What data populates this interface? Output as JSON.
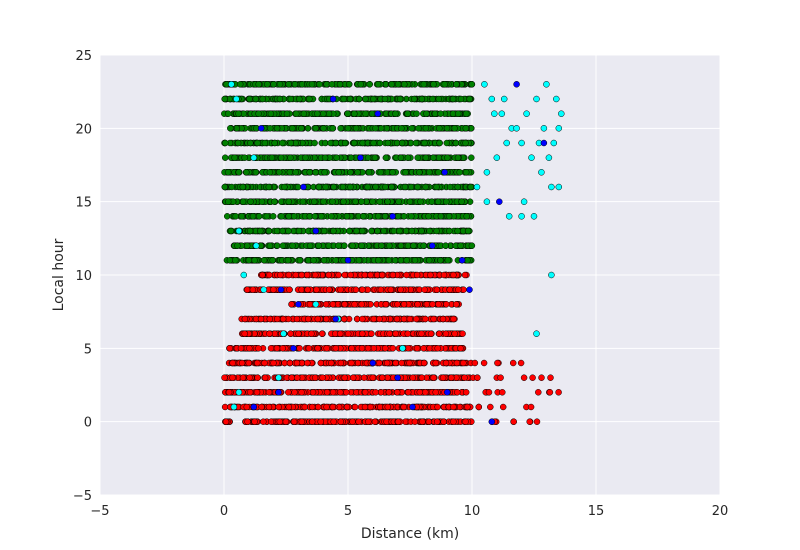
{
  "chart_data": {
    "type": "scatter",
    "title": "",
    "xlabel": "Distance (km)",
    "ylabel": "Local hour",
    "xlim": [
      -5,
      20
    ],
    "ylim": [
      -5,
      25
    ],
    "xticks": [
      "−5",
      "0",
      "5",
      "10",
      "15",
      "20"
    ],
    "yticks": [
      "−5",
      "0",
      "5",
      "10",
      "15",
      "20",
      "25"
    ],
    "grid": true,
    "legend": "none",
    "colors": {
      "plot_background": "#eaeaf2",
      "grid": "#ffffff",
      "red_points": "#ff0000",
      "green_points": "#008000",
      "cyan_points": "#00ffff",
      "blue_points": "#0000ff",
      "marker_edge": "#000000"
    },
    "series": [
      {
        "color": "#ff0000",
        "hours": [
          0,
          1,
          2,
          3,
          4,
          5,
          6,
          7,
          8,
          9,
          10
        ],
        "x_ranges": [
          [
            0.0,
            13.2
          ],
          [
            0.0,
            12.6
          ],
          [
            0.0,
            13.5
          ],
          [
            0.0,
            13.6
          ],
          [
            0.2,
            12.6
          ],
          [
            0.2,
            9.9
          ],
          [
            0.7,
            9.9
          ],
          [
            0.7,
            9.3
          ],
          [
            2.7,
            9.5
          ],
          [
            0.9,
            9.7
          ],
          [
            1.4,
            9.9
          ]
        ]
      },
      {
        "color": "#008000",
        "hours": [
          11,
          12,
          13,
          14,
          15,
          16,
          17,
          18,
          19,
          20,
          21,
          22,
          23
        ],
        "x_ranges": [
          [
            0.1,
            10.0
          ],
          [
            0.4,
            10.0
          ],
          [
            0.2,
            10.0
          ],
          [
            0.1,
            10.0
          ],
          [
            0.0,
            10.0
          ],
          [
            0.0,
            10.0
          ],
          [
            0.0,
            10.0
          ],
          [
            0.0,
            10.0
          ],
          [
            0.0,
            10.0
          ],
          [
            0.0,
            10.0
          ],
          [
            0.0,
            10.0
          ],
          [
            0.0,
            10.0
          ],
          [
            0.0,
            10.0
          ]
        ]
      },
      {
        "color": "#00ffff",
        "points": [
          [
            0.3,
            23
          ],
          [
            0.5,
            22
          ],
          [
            1.2,
            18
          ],
          [
            0.6,
            13
          ],
          [
            1.3,
            12
          ],
          [
            0.8,
            10
          ],
          [
            1.6,
            9
          ],
          [
            3.7,
            8
          ],
          [
            4.6,
            7
          ],
          [
            2.4,
            6
          ],
          [
            7.2,
            5
          ],
          [
            0.6,
            2
          ],
          [
            2.2,
            3
          ],
          [
            0.4,
            1
          ],
          [
            12.6,
            6
          ],
          [
            13.2,
            10
          ],
          [
            10.5,
            23
          ],
          [
            10.8,
            22
          ],
          [
            11.2,
            21
          ],
          [
            11.6,
            20
          ],
          [
            12.0,
            19
          ],
          [
            12.4,
            18
          ],
          [
            12.8,
            17
          ],
          [
            13.2,
            16
          ],
          [
            10.6,
            15
          ],
          [
            11.5,
            14
          ],
          [
            12.0,
            14
          ],
          [
            12.5,
            14
          ],
          [
            10.2,
            16
          ],
          [
            10.6,
            17
          ],
          [
            11.0,
            18
          ],
          [
            11.4,
            19
          ],
          [
            11.8,
            20
          ],
          [
            12.2,
            21
          ],
          [
            12.6,
            22
          ],
          [
            13.0,
            23
          ],
          [
            13.4,
            22
          ],
          [
            13.5,
            20
          ],
          [
            13.3,
            19
          ],
          [
            13.6,
            21
          ],
          [
            13.1,
            18
          ],
          [
            12.9,
            20
          ],
          [
            12.7,
            19
          ],
          [
            13.5,
            16
          ],
          [
            12.1,
            15
          ],
          [
            10.9,
            21
          ],
          [
            11.3,
            22
          ]
        ]
      },
      {
        "color": "#0000ff",
        "points": [
          [
            2.2,
            2
          ],
          [
            2.3,
            9
          ],
          [
            3.0,
            8
          ],
          [
            3.2,
            16
          ],
          [
            4.5,
            7
          ],
          [
            6.2,
            21
          ],
          [
            7.0,
            3
          ],
          [
            9.6,
            11
          ],
          [
            11.8,
            23
          ],
          [
            12.9,
            19
          ],
          [
            11.1,
            15
          ],
          [
            6.0,
            4
          ],
          [
            8.4,
            12
          ],
          [
            5.5,
            18
          ],
          [
            1.5,
            20
          ],
          [
            3.7,
            13
          ],
          [
            9.0,
            2
          ],
          [
            2.8,
            5
          ],
          [
            7.6,
            1
          ],
          [
            10.8,
            0
          ],
          [
            6.8,
            14
          ],
          [
            4.4,
            22
          ],
          [
            8.9,
            17
          ],
          [
            1.2,
            1
          ],
          [
            5.0,
            11
          ],
          [
            9.9,
            9
          ]
        ]
      }
    ]
  }
}
